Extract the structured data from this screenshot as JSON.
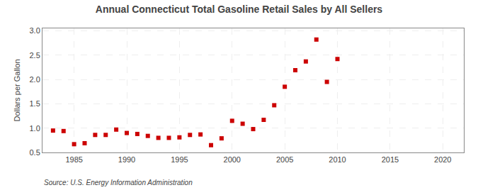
{
  "chart_data": {
    "type": "scatter",
    "title": "Annual Connecticut Total Gasoline Retail Sales by All Sellers",
    "ylabel": "Dollars per Gallon",
    "annotations": [
      "Source: U.S. Energy Information Administration"
    ],
    "x": [
      1983,
      1984,
      1985,
      1986,
      1987,
      1988,
      1989,
      1990,
      1991,
      1992,
      1993,
      1994,
      1995,
      1996,
      1997,
      1998,
      1999,
      2000,
      2001,
      2002,
      2003,
      2004,
      2005,
      2006,
      2007,
      2008,
      2009,
      2010
    ],
    "values": [
      0.95,
      0.94,
      0.67,
      0.69,
      0.86,
      0.86,
      0.97,
      0.9,
      0.88,
      0.84,
      0.8,
      0.8,
      0.81,
      0.86,
      0.87,
      0.65,
      0.79,
      1.15,
      1.09,
      0.98,
      1.17,
      1.47,
      1.85,
      2.19,
      2.37,
      2.82,
      1.95,
      2.42
    ],
    "color": "#cc0000",
    "marker": "square",
    "xlim": [
      1982,
      2022
    ],
    "ylim": [
      0.5,
      3.05
    ],
    "xticks": [
      1985,
      1990,
      1995,
      2000,
      2005,
      2010,
      2015,
      2020
    ],
    "yticks": [
      0.5,
      {
        "value": 1.0,
        "label": "1.0"
      },
      1.5,
      {
        "value": 2.0,
        "label": "2.0"
      },
      2.5,
      {
        "value": 3.0,
        "label": "3.0"
      }
    ],
    "grid": true
  }
}
